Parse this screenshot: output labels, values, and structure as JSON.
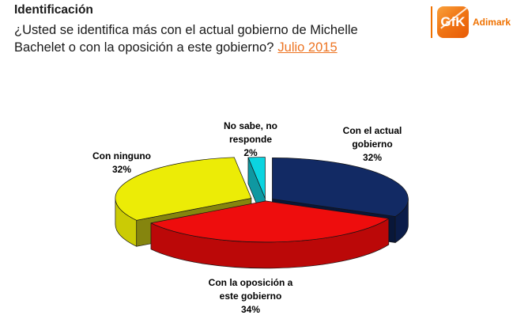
{
  "header": {
    "title": "Identificación",
    "question_line1": "¿Usted se identifica más con el actual gobierno de Michelle",
    "question_line2": "Bachelet o con la oposición a este gobierno?",
    "date_link": "Julio 2015",
    "date_link_color": "#ed7422"
  },
  "logo": {
    "gfk": "GfK",
    "adimark": "Adimark",
    "orange": "#ef7100"
  },
  "chart_data": {
    "type": "pie",
    "style": "3d-exploded",
    "title": "Identificación — Julio 2015",
    "legend_position": "none",
    "labels_on_chart": true,
    "slices": [
      {
        "label": "Con el actual gobierno",
        "label_lines": [
          "Con el actual",
          "gobierno"
        ],
        "value": 32,
        "pct": "32%",
        "color": "#122a64",
        "wall": "#0b1c49",
        "cut": "#091739"
      },
      {
        "label": "Con la oposición a este gobierno",
        "label_lines": [
          "Con la oposición a",
          "este gobierno"
        ],
        "value": 34,
        "pct": "34%",
        "color": "#ee0d0d",
        "wall": "#bb0808",
        "cut": "#9c0606"
      },
      {
        "label": "Con ninguno",
        "label_lines": [
          "Con ninguno"
        ],
        "value": 32,
        "pct": "32%",
        "color": "#ecec06",
        "wall": "#cbcb05",
        "cut": "#85850e"
      },
      {
        "label": "No sabe, no responde",
        "label_lines": [
          "No sabe, no",
          "responde"
        ],
        "value": 2,
        "pct": "2%",
        "color": "#0bd4e0",
        "wall": "#0f98a1",
        "cut": "#0f98a1"
      }
    ]
  }
}
